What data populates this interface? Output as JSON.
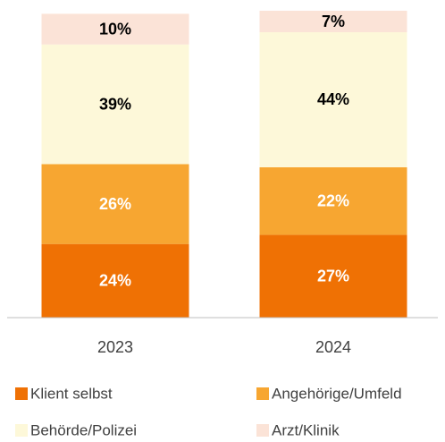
{
  "chart_data": {
    "type": "stacked_bar",
    "categories": [
      "2023",
      "2024"
    ],
    "series": [
      {
        "name": "Klient selbst",
        "color": "#ef7104",
        "values": [
          24,
          27
        ],
        "value_labels": [
          "24%",
          "27%"
        ]
      },
      {
        "name": "Angehörige/Umfeld",
        "color": "#f7a631",
        "values": [
          26,
          22
        ],
        "value_labels": [
          "26%",
          "22%"
        ]
      },
      {
        "name": "Behörde/Polizei",
        "color": "#fdf8d9",
        "values": [
          39,
          44
        ],
        "value_labels": [
          "39%",
          "44%"
        ]
      },
      {
        "name": "Arzt/Klinik",
        "color": "#fbe3d7",
        "values": [
          10,
          7
        ],
        "value_labels": [
          "10%",
          "7%"
        ]
      }
    ],
    "legend": "bottom"
  }
}
